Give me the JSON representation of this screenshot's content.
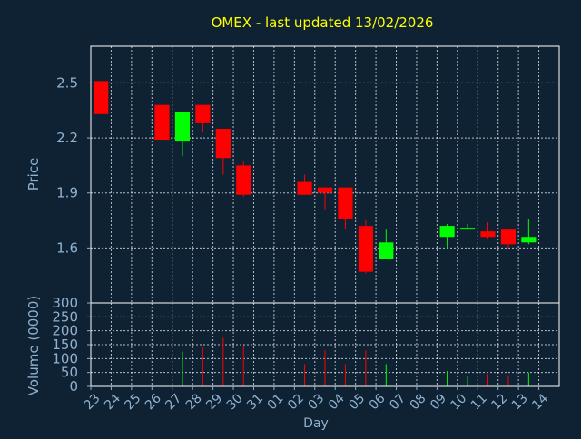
{
  "colors": {
    "background": "#0f2233",
    "title": "#ffff00",
    "axis_text": "#8fb1d0",
    "grid": "#ffffff",
    "up": "#00ff00",
    "down": "#ff0000"
  },
  "chart_data": {
    "type": "candlestick",
    "title": "OMEX - last updated 13/02/2026",
    "xlabel": "Day",
    "price_panel": {
      "ylabel": "Price",
      "ylim": [
        1.3,
        2.7
      ],
      "yticks": [
        1.6,
        1.9,
        2.2,
        2.5
      ],
      "ytick_labels": [
        "1.6",
        "1.9",
        "2.2",
        "2.5"
      ],
      "grid": true
    },
    "volume_panel": {
      "ylabel": "Volume (0000)",
      "ylim": [
        0,
        300
      ],
      "yticks": [
        0,
        50,
        100,
        150,
        200,
        250,
        300
      ],
      "ytick_labels": [
        "0",
        "50",
        "100",
        "150",
        "200",
        "250",
        "300"
      ],
      "grid": true
    },
    "day_labels": [
      "23",
      "24",
      "25",
      "26",
      "27",
      "28",
      "29",
      "30",
      "31",
      "01",
      "02",
      "03",
      "04",
      "05",
      "06",
      "07",
      "08",
      "09",
      "10",
      "11",
      "12",
      "13",
      "14"
    ],
    "candles": [
      {
        "day": "23",
        "open": 2.51,
        "high": 2.51,
        "low": 2.33,
        "close": 2.33,
        "volume": 0
      },
      {
        "day": "26",
        "open": 2.38,
        "high": 2.48,
        "low": 2.13,
        "close": 2.19,
        "volume": 140
      },
      {
        "day": "27",
        "open": 2.18,
        "high": 2.34,
        "low": 2.1,
        "close": 2.34,
        "volume": 125
      },
      {
        "day": "28",
        "open": 2.38,
        "high": 2.38,
        "low": 2.23,
        "close": 2.28,
        "volume": 140
      },
      {
        "day": "29",
        "open": 2.25,
        "high": 2.25,
        "low": 2.0,
        "close": 2.09,
        "volume": 175
      },
      {
        "day": "30",
        "open": 2.05,
        "high": 2.07,
        "low": 1.88,
        "close": 1.89,
        "volume": 145
      },
      {
        "day": "02",
        "open": 1.96,
        "high": 2.0,
        "low": 1.89,
        "close": 1.89,
        "volume": 80
      },
      {
        "day": "03",
        "open": 1.93,
        "high": 1.93,
        "low": 1.81,
        "close": 1.9,
        "volume": 130
      },
      {
        "day": "04",
        "open": 1.93,
        "high": 1.93,
        "low": 1.7,
        "close": 1.76,
        "volume": 80
      },
      {
        "day": "05",
        "open": 1.72,
        "high": 1.75,
        "low": 1.46,
        "close": 1.47,
        "volume": 130
      },
      {
        "day": "06",
        "open": 1.54,
        "high": 1.7,
        "low": 1.54,
        "close": 1.63,
        "volume": 80
      },
      {
        "day": "09",
        "open": 1.66,
        "high": 1.73,
        "low": 1.6,
        "close": 1.72,
        "volume": 55
      },
      {
        "day": "10",
        "open": 1.7,
        "high": 1.73,
        "low": 1.7,
        "close": 1.71,
        "volume": 35
      },
      {
        "day": "11",
        "open": 1.69,
        "high": 1.74,
        "low": 1.65,
        "close": 1.66,
        "volume": 45
      },
      {
        "day": "12",
        "open": 1.7,
        "high": 1.7,
        "low": 1.6,
        "close": 1.62,
        "volume": 40
      },
      {
        "day": "13",
        "open": 1.63,
        "high": 1.76,
        "low": 1.62,
        "close": 1.66,
        "volume": 50
      }
    ]
  }
}
